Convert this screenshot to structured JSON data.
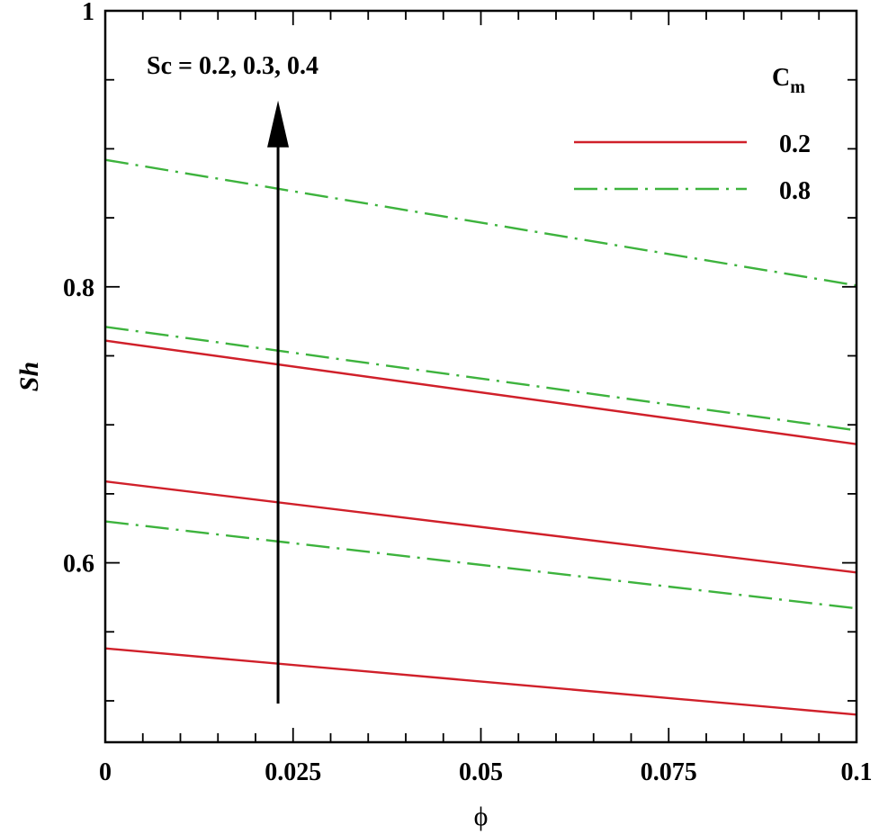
{
  "chart_data": {
    "type": "line",
    "title": "",
    "xlabel": "ϕ",
    "ylabel": "Sh",
    "xlim": [
      0,
      0.1
    ],
    "ylim": [
      0.47,
      1.0
    ],
    "xticks": [
      0,
      0.025,
      0.05,
      0.075,
      0.1
    ],
    "xtick_labels": [
      "0",
      "0.025",
      "0.05",
      "0.075",
      "0.1"
    ],
    "yticks": [
      0.6,
      0.8,
      1.0
    ],
    "ytick_labels": [
      "0.6",
      "0.8",
      "1"
    ],
    "grid": false,
    "annotation": "Sc = 0.2, 0.3, 0.4",
    "legend": {
      "title_main": "C",
      "title_sub": "m",
      "placement": "top-right",
      "entries": [
        {
          "label": "0.2",
          "color": "#d0202a",
          "style": "solid"
        },
        {
          "label": "0.8",
          "color": "#3db33d",
          "style": "dashdot"
        }
      ]
    },
    "series": [
      {
        "name": "Cm=0.2, Sc=0.2",
        "legend": "0.2",
        "color": "#d0202a",
        "style": "solid",
        "x": [
          0,
          0.1
        ],
        "y": [
          0.538,
          0.49
        ]
      },
      {
        "name": "Cm=0.2, Sc=0.3",
        "legend": "0.2",
        "color": "#d0202a",
        "style": "solid",
        "x": [
          0,
          0.1
        ],
        "y": [
          0.659,
          0.593
        ]
      },
      {
        "name": "Cm=0.2, Sc=0.4",
        "legend": "0.2",
        "color": "#d0202a",
        "style": "solid",
        "x": [
          0,
          0.1
        ],
        "y": [
          0.761,
          0.686
        ]
      },
      {
        "name": "Cm=0.8, Sc=0.2",
        "legend": "0.8",
        "color": "#3db33d",
        "style": "dashdot",
        "x": [
          0,
          0.1
        ],
        "y": [
          0.63,
          0.567
        ]
      },
      {
        "name": "Cm=0.8, Sc=0.3",
        "legend": "0.8",
        "color": "#3db33d",
        "style": "dashdot",
        "x": [
          0,
          0.1
        ],
        "y": [
          0.771,
          0.696
        ]
      },
      {
        "name": "Cm=0.8, Sc=0.4",
        "legend": "0.8",
        "color": "#3db33d",
        "style": "dashdot",
        "x": [
          0,
          0.1
        ],
        "y": [
          0.892,
          0.801
        ]
      }
    ],
    "arrow": {
      "x": 0.023,
      "y_start": 0.498,
      "y_end": 0.935,
      "direction": "up"
    }
  }
}
